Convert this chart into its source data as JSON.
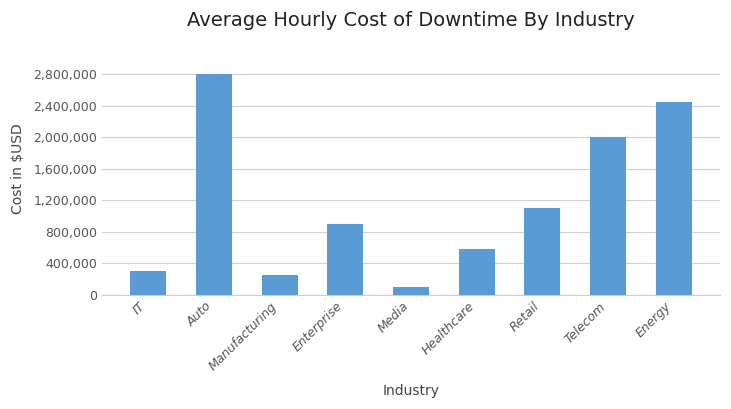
{
  "title": "Average Hourly Cost of Downtime By Industry",
  "xlabel": "Industry",
  "ylabel": "Cost in $USD",
  "categories": [
    "IT",
    "Auto",
    "Manufacturing",
    "Enterprise",
    "Media",
    "Healthcare",
    "Retail",
    "Telecom",
    "Energy"
  ],
  "values": [
    300000,
    2800000,
    250000,
    900000,
    100000,
    580000,
    1100000,
    2000000,
    2450000
  ],
  "bar_color": "#5b9bd5",
  "background_color": "#ffffff",
  "plot_bg_color": "#ffffff",
  "ylim": [
    0,
    3200000
  ],
  "yticks": [
    0,
    400000,
    800000,
    1200000,
    1600000,
    2000000,
    2400000,
    2800000
  ],
  "title_fontsize": 14,
  "axis_label_fontsize": 10,
  "tick_fontsize": 9,
  "grid_color": "#d0d0d0",
  "bar_width": 0.55
}
